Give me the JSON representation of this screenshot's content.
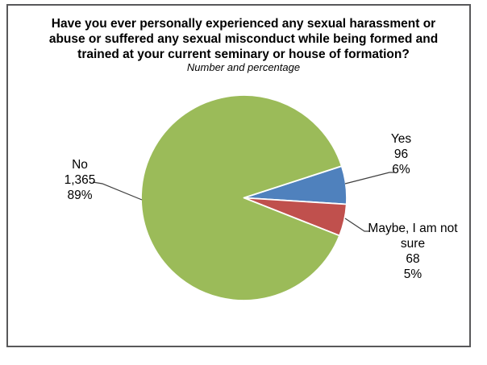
{
  "window": {
    "background_color": "#ffffff",
    "frame_border_color": "#58585a"
  },
  "chart": {
    "title": "Have you ever personally experienced any sexual harassment or abuse or suffered any sexual misconduct while being formed and trained at your current seminary or house of formation?",
    "title_lines": [
      "Have you ever personally experienced any sexual harassment or",
      "abuse or suffered any sexual misconduct while being formed and",
      "trained at your current seminary or house of formation?"
    ],
    "subtitle": "Number and percentage"
  },
  "callouts": {
    "no": {
      "line1": "No",
      "line2": "1,365",
      "line3": "89%"
    },
    "yes": {
      "line1": "Yes",
      "line2": "96",
      "line3": "6%"
    },
    "maybe": {
      "line1": "Maybe, I am not",
      "line2": "sure",
      "line3": "68",
      "line4": "5%"
    }
  },
  "chart_data": {
    "type": "pie",
    "title": "Have you ever personally experienced any sexual harassment or abuse or suffered any sexual misconduct while being formed and trained at your current seminary or house of formation?",
    "subtitle": "Number and percentage",
    "series": [
      {
        "name": "Yes",
        "value": 96,
        "pct": 6,
        "color": "#4f81bd"
      },
      {
        "name": "Maybe, I am not sure",
        "value": 68,
        "pct": 5,
        "color": "#c0504d"
      },
      {
        "name": "No",
        "value": 1365,
        "pct": 89,
        "color": "#9bbb59"
      }
    ],
    "layout": {
      "start_angle_deg": -18,
      "direction": "clockwise",
      "label_style": "outside with leader lines",
      "slice_border_color": "#ffffff",
      "leader_line_color": "#3f3f3f",
      "legend": "none"
    }
  }
}
